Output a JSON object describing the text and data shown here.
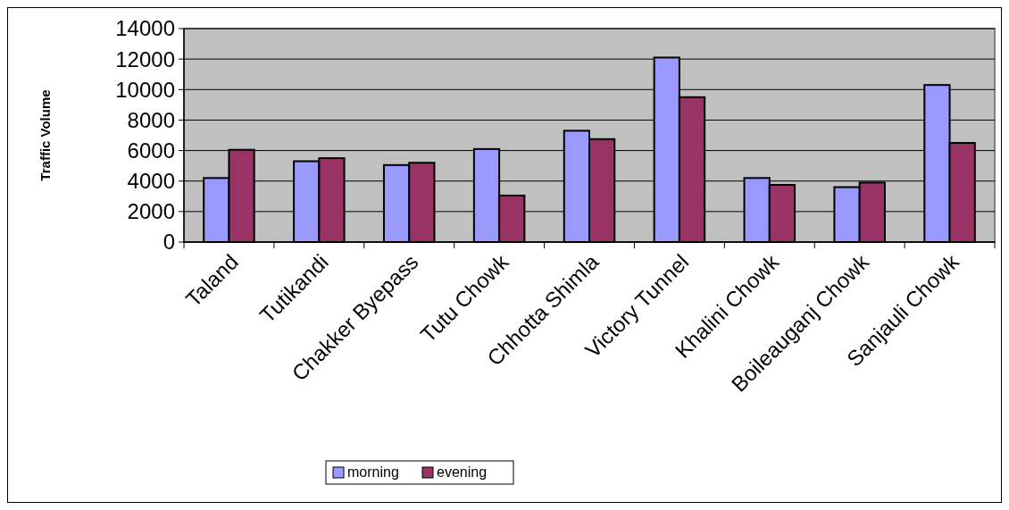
{
  "chart_data": {
    "type": "bar",
    "ylabel": "Traffic Volume",
    "categories": [
      "Taland",
      "Tutikandi",
      "Chakker Byepass",
      "Tutu Chowk",
      "Chhotta Shimla",
      "Victory Tunnel",
      "Khalini Chowk",
      "Boileauganj Chowk",
      "Sanjauli Chowk"
    ],
    "series": [
      {
        "name": "morning",
        "color": "#9999ff",
        "values": [
          4200,
          5300,
          5050,
          6100,
          7300,
          12100,
          4200,
          3600,
          10300
        ]
      },
      {
        "name": "evening",
        "color": "#993366",
        "values": [
          6050,
          5500,
          5200,
          3050,
          6750,
          9500,
          3750,
          3900,
          6500
        ]
      }
    ],
    "ylim": [
      0,
      14000
    ],
    "yticks": [
      0,
      2000,
      4000,
      6000,
      8000,
      10000,
      12000,
      14000
    ],
    "grid": "y",
    "legend": "bottom"
  }
}
